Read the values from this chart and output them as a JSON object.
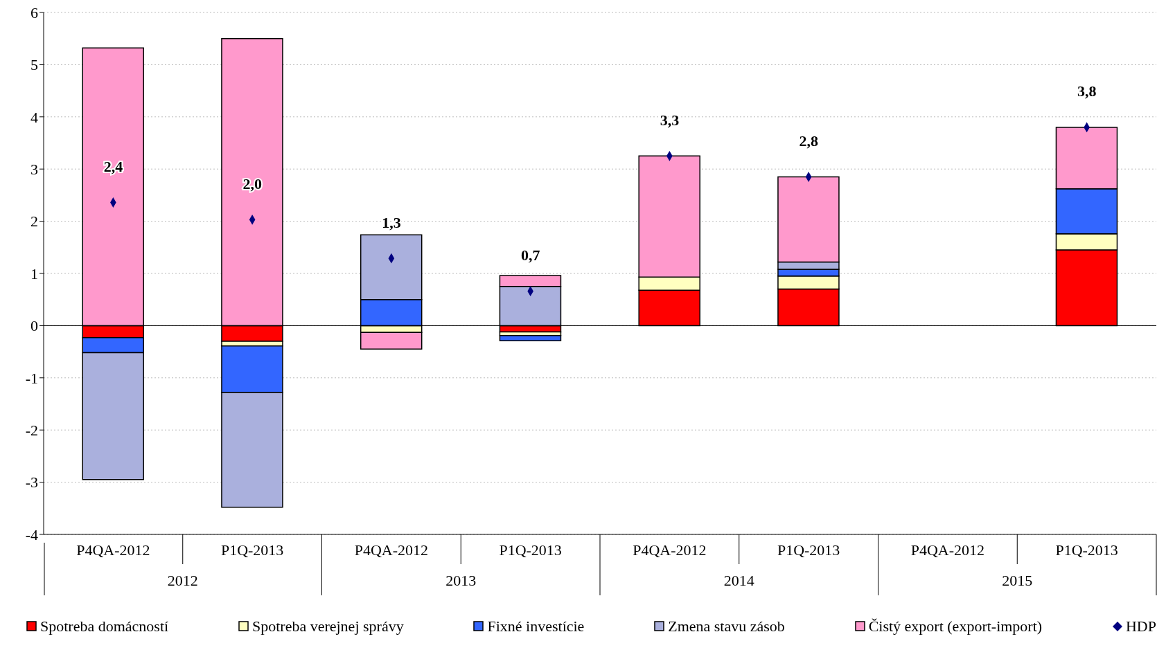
{
  "chart_data": {
    "type": "bar",
    "stacked": true,
    "categories": [
      "P4QA-2012",
      "P1Q-2013",
      "P4QA-2012",
      "P1Q-2013",
      "P4QA-2012",
      "P1Q-2013",
      "P4QA-2012",
      "P1Q-2013"
    ],
    "annotations": [
      "2012",
      "2013",
      "2014",
      "2015"
    ],
    "series": [
      {
        "name": "Spotreba domácností",
        "color": "#ff0000",
        "values": [
          -0.23,
          -0.3,
          0,
          -0.12,
          0.68,
          0.7,
          null,
          1.45
        ]
      },
      {
        "name": "Spotreba verejnej správy",
        "color": "#ffffc0",
        "values": [
          0,
          -0.09,
          -0.13,
          -0.07,
          0.25,
          0.25,
          null,
          0.31
        ]
      },
      {
        "name": "Fixné investície",
        "color": "#3366ff",
        "values": [
          -0.29,
          -0.89,
          0.5,
          -0.1,
          0,
          0.13,
          null,
          0.86
        ]
      },
      {
        "name": "Zmena stavu zásob",
        "color": "#aab0dd",
        "values": [
          -2.43,
          -2.2,
          1.24,
          0.75,
          0,
          0.14,
          null,
          0
        ]
      },
      {
        "name": "Čistý export (export-import)",
        "color": "#ff99cc",
        "values": [
          5.32,
          5.5,
          -0.32,
          0.21,
          2.32,
          1.63,
          null,
          1.18
        ]
      },
      {
        "name": "HDP",
        "type": "scatter",
        "marker": "diamond",
        "color": "#000080",
        "values": [
          2.36,
          2.03,
          1.29,
          0.66,
          3.25,
          2.85,
          null,
          3.8
        ],
        "value_labels": [
          "2,4",
          "2,0",
          "1,3",
          "0,7",
          "3,3",
          "2,8",
          null,
          "3,8"
        ]
      }
    ],
    "ylim": [
      -4,
      6
    ],
    "yticks": [
      -4,
      -3,
      -2,
      -1,
      0,
      1,
      2,
      3,
      4,
      5,
      6
    ],
    "grid": "y",
    "legend": "bottom",
    "ref_lines": [
      {
        "axis": "y",
        "value": 0,
        "color": "#000000"
      }
    ]
  }
}
